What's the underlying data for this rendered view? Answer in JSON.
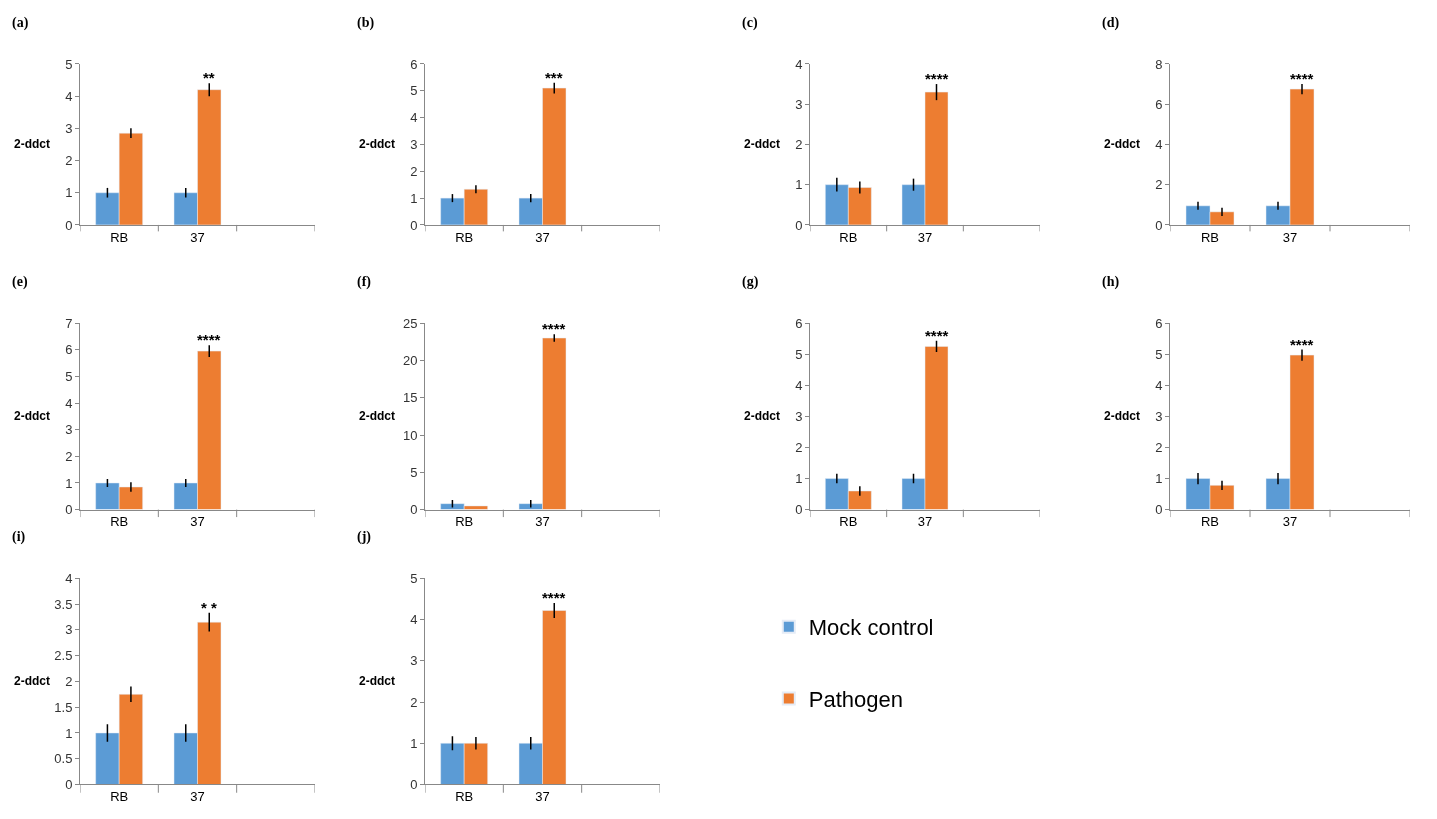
{
  "chart_data": [
    {
      "type": "bar",
      "title": "(a)",
      "ylabel": "2-ddct",
      "categories": [
        "RB",
        "37",
        null
      ],
      "ylim": [
        0,
        5
      ],
      "yticks": [
        0,
        1,
        2,
        3,
        4,
        5
      ],
      "series": [
        {
          "color": "#5b9bd5",
          "values": [
            1,
            1,
            null
          ],
          "errors": [
            0.15,
            0.15,
            null
          ]
        },
        {
          "color": "#ed7d31",
          "values": [
            2.85,
            4.2,
            null
          ],
          "errors": [
            0.15,
            0.2,
            null
          ]
        }
      ],
      "annotations": [
        "**"
      ]
    },
    {
      "type": "bar",
      "title": "(b)",
      "ylabel": "2-ddct",
      "categories": [
        "RB",
        "37",
        null
      ],
      "ylim": [
        0,
        6
      ],
      "yticks": [
        0,
        1,
        2,
        3,
        4,
        5,
        6
      ],
      "series": [
        {
          "color": "#5b9bd5",
          "values": [
            1,
            1,
            null
          ],
          "errors": [
            0.15,
            0.15,
            null
          ]
        },
        {
          "color": "#ed7d31",
          "values": [
            1.33,
            5.1,
            null
          ],
          "errors": [
            0.15,
            0.2,
            null
          ]
        }
      ],
      "annotations": [
        "***"
      ]
    },
    {
      "type": "bar",
      "title": "(c)",
      "ylabel": "2-ddct",
      "categories": [
        "RB",
        "37",
        null
      ],
      "ylim": [
        0,
        4
      ],
      "yticks": [
        0,
        1,
        2,
        3,
        4
      ],
      "series": [
        {
          "color": "#5b9bd5",
          "values": [
            1,
            1,
            null
          ],
          "errors": [
            0.17,
            0.15,
            null
          ]
        },
        {
          "color": "#ed7d31",
          "values": [
            0.93,
            3.3,
            null
          ],
          "errors": [
            0.15,
            0.2,
            null
          ]
        }
      ],
      "annotations": [
        "****"
      ]
    },
    {
      "type": "bar",
      "title": "(d)",
      "ylabel": "2-ddct",
      "categories": [
        "RB",
        "37",
        null
      ],
      "ylim": [
        0,
        8
      ],
      "yticks": [
        0,
        2,
        4,
        6,
        8
      ],
      "series": [
        {
          "color": "#5b9bd5",
          "values": [
            0.95,
            0.95,
            null
          ],
          "errors": [
            0.2,
            0.2,
            null
          ]
        },
        {
          "color": "#ed7d31",
          "values": [
            0.65,
            6.75,
            null
          ],
          "errors": [
            0.2,
            0.25,
            null
          ]
        }
      ],
      "annotations": [
        "****"
      ]
    },
    {
      "type": "bar",
      "title": "(e)",
      "ylabel": "2-ddct",
      "categories": [
        "RB",
        "37",
        null
      ],
      "ylim": [
        0,
        7
      ],
      "yticks": [
        0,
        1,
        2,
        3,
        4,
        5,
        6,
        7
      ],
      "series": [
        {
          "color": "#5b9bd5",
          "values": [
            1,
            1,
            null
          ],
          "errors": [
            0.15,
            0.15,
            null
          ]
        },
        {
          "color": "#ed7d31",
          "values": [
            0.85,
            5.95,
            null
          ],
          "errors": [
            0.18,
            0.22,
            null
          ]
        }
      ],
      "annotations": [
        "****"
      ]
    },
    {
      "type": "bar",
      "title": "(f)",
      "ylabel": "2-ddct",
      "categories": [
        "RB",
        "37",
        null
      ],
      "ylim": [
        0,
        25
      ],
      "yticks": [
        0,
        5,
        10,
        15,
        20,
        25
      ],
      "series": [
        {
          "color": "#5b9bd5",
          "values": [
            0.8,
            0.8,
            null
          ],
          "errors": [
            0.5,
            0.5,
            null
          ]
        },
        {
          "color": "#ed7d31",
          "values": [
            0.5,
            23,
            null
          ],
          "errors": [
            null,
            0.5,
            null
          ]
        }
      ],
      "annotations": [
        "****"
      ]
    },
    {
      "type": "bar",
      "title": "(g)",
      "ylabel": "2-ddct",
      "categories": [
        "RB",
        "37",
        null
      ],
      "ylim": [
        0,
        6
      ],
      "yticks": [
        0,
        1,
        2,
        3,
        4,
        5,
        6
      ],
      "series": [
        {
          "color": "#5b9bd5",
          "values": [
            1,
            1,
            null
          ],
          "errors": [
            0.15,
            0.15,
            null
          ]
        },
        {
          "color": "#ed7d31",
          "values": [
            0.6,
            5.25,
            null
          ],
          "errors": [
            0.15,
            0.18,
            null
          ]
        }
      ],
      "annotations": [
        "****"
      ]
    },
    {
      "type": "bar",
      "title": "(h)",
      "ylabel": "2-ddct",
      "categories": [
        "RB",
        "37",
        null
      ],
      "ylim": [
        0,
        6
      ],
      "yticks": [
        0,
        1,
        2,
        3,
        4,
        5,
        6
      ],
      "series": [
        {
          "color": "#5b9bd5",
          "values": [
            1,
            1,
            null
          ],
          "errors": [
            0.18,
            0.18,
            null
          ]
        },
        {
          "color": "#ed7d31",
          "values": [
            0.78,
            4.97,
            null
          ],
          "errors": [
            0.15,
            0.18,
            null
          ]
        }
      ],
      "annotations": [
        "****"
      ]
    },
    {
      "type": "bar",
      "title": "(i)",
      "ylabel": "2-ddct",
      "categories": [
        "RB",
        "37",
        null
      ],
      "ylim": [
        0,
        4
      ],
      "yticks": [
        0,
        0.5,
        1,
        1.5,
        2,
        2.5,
        3,
        3.5,
        4
      ],
      "series": [
        {
          "color": "#5b9bd5",
          "values": [
            1,
            1,
            null
          ],
          "errors": [
            0.17,
            0.17,
            null
          ]
        },
        {
          "color": "#ed7d31",
          "values": [
            1.75,
            3.15,
            null
          ],
          "errors": [
            0.15,
            0.18,
            null
          ]
        }
      ],
      "annotations": [
        "* *"
      ]
    },
    {
      "type": "bar",
      "title": "(j)",
      "ylabel": "2-ddct",
      "categories": [
        "RB",
        "37",
        null
      ],
      "ylim": [
        0,
        5
      ],
      "yticks": [
        0,
        1,
        2,
        3,
        4,
        5
      ],
      "legend": "right",
      "series": [
        {
          "name": "Mock control",
          "color": "#5b9bd5",
          "values": [
            1,
            1,
            null
          ],
          "errors": [
            0.17,
            0.15,
            null
          ]
        },
        {
          "name": "Pathogen",
          "color": "#ed7d31",
          "values": [
            1,
            4.22,
            null
          ],
          "errors": [
            0.15,
            0.18,
            null
          ]
        }
      ],
      "annotations": [
        "****"
      ]
    }
  ]
}
